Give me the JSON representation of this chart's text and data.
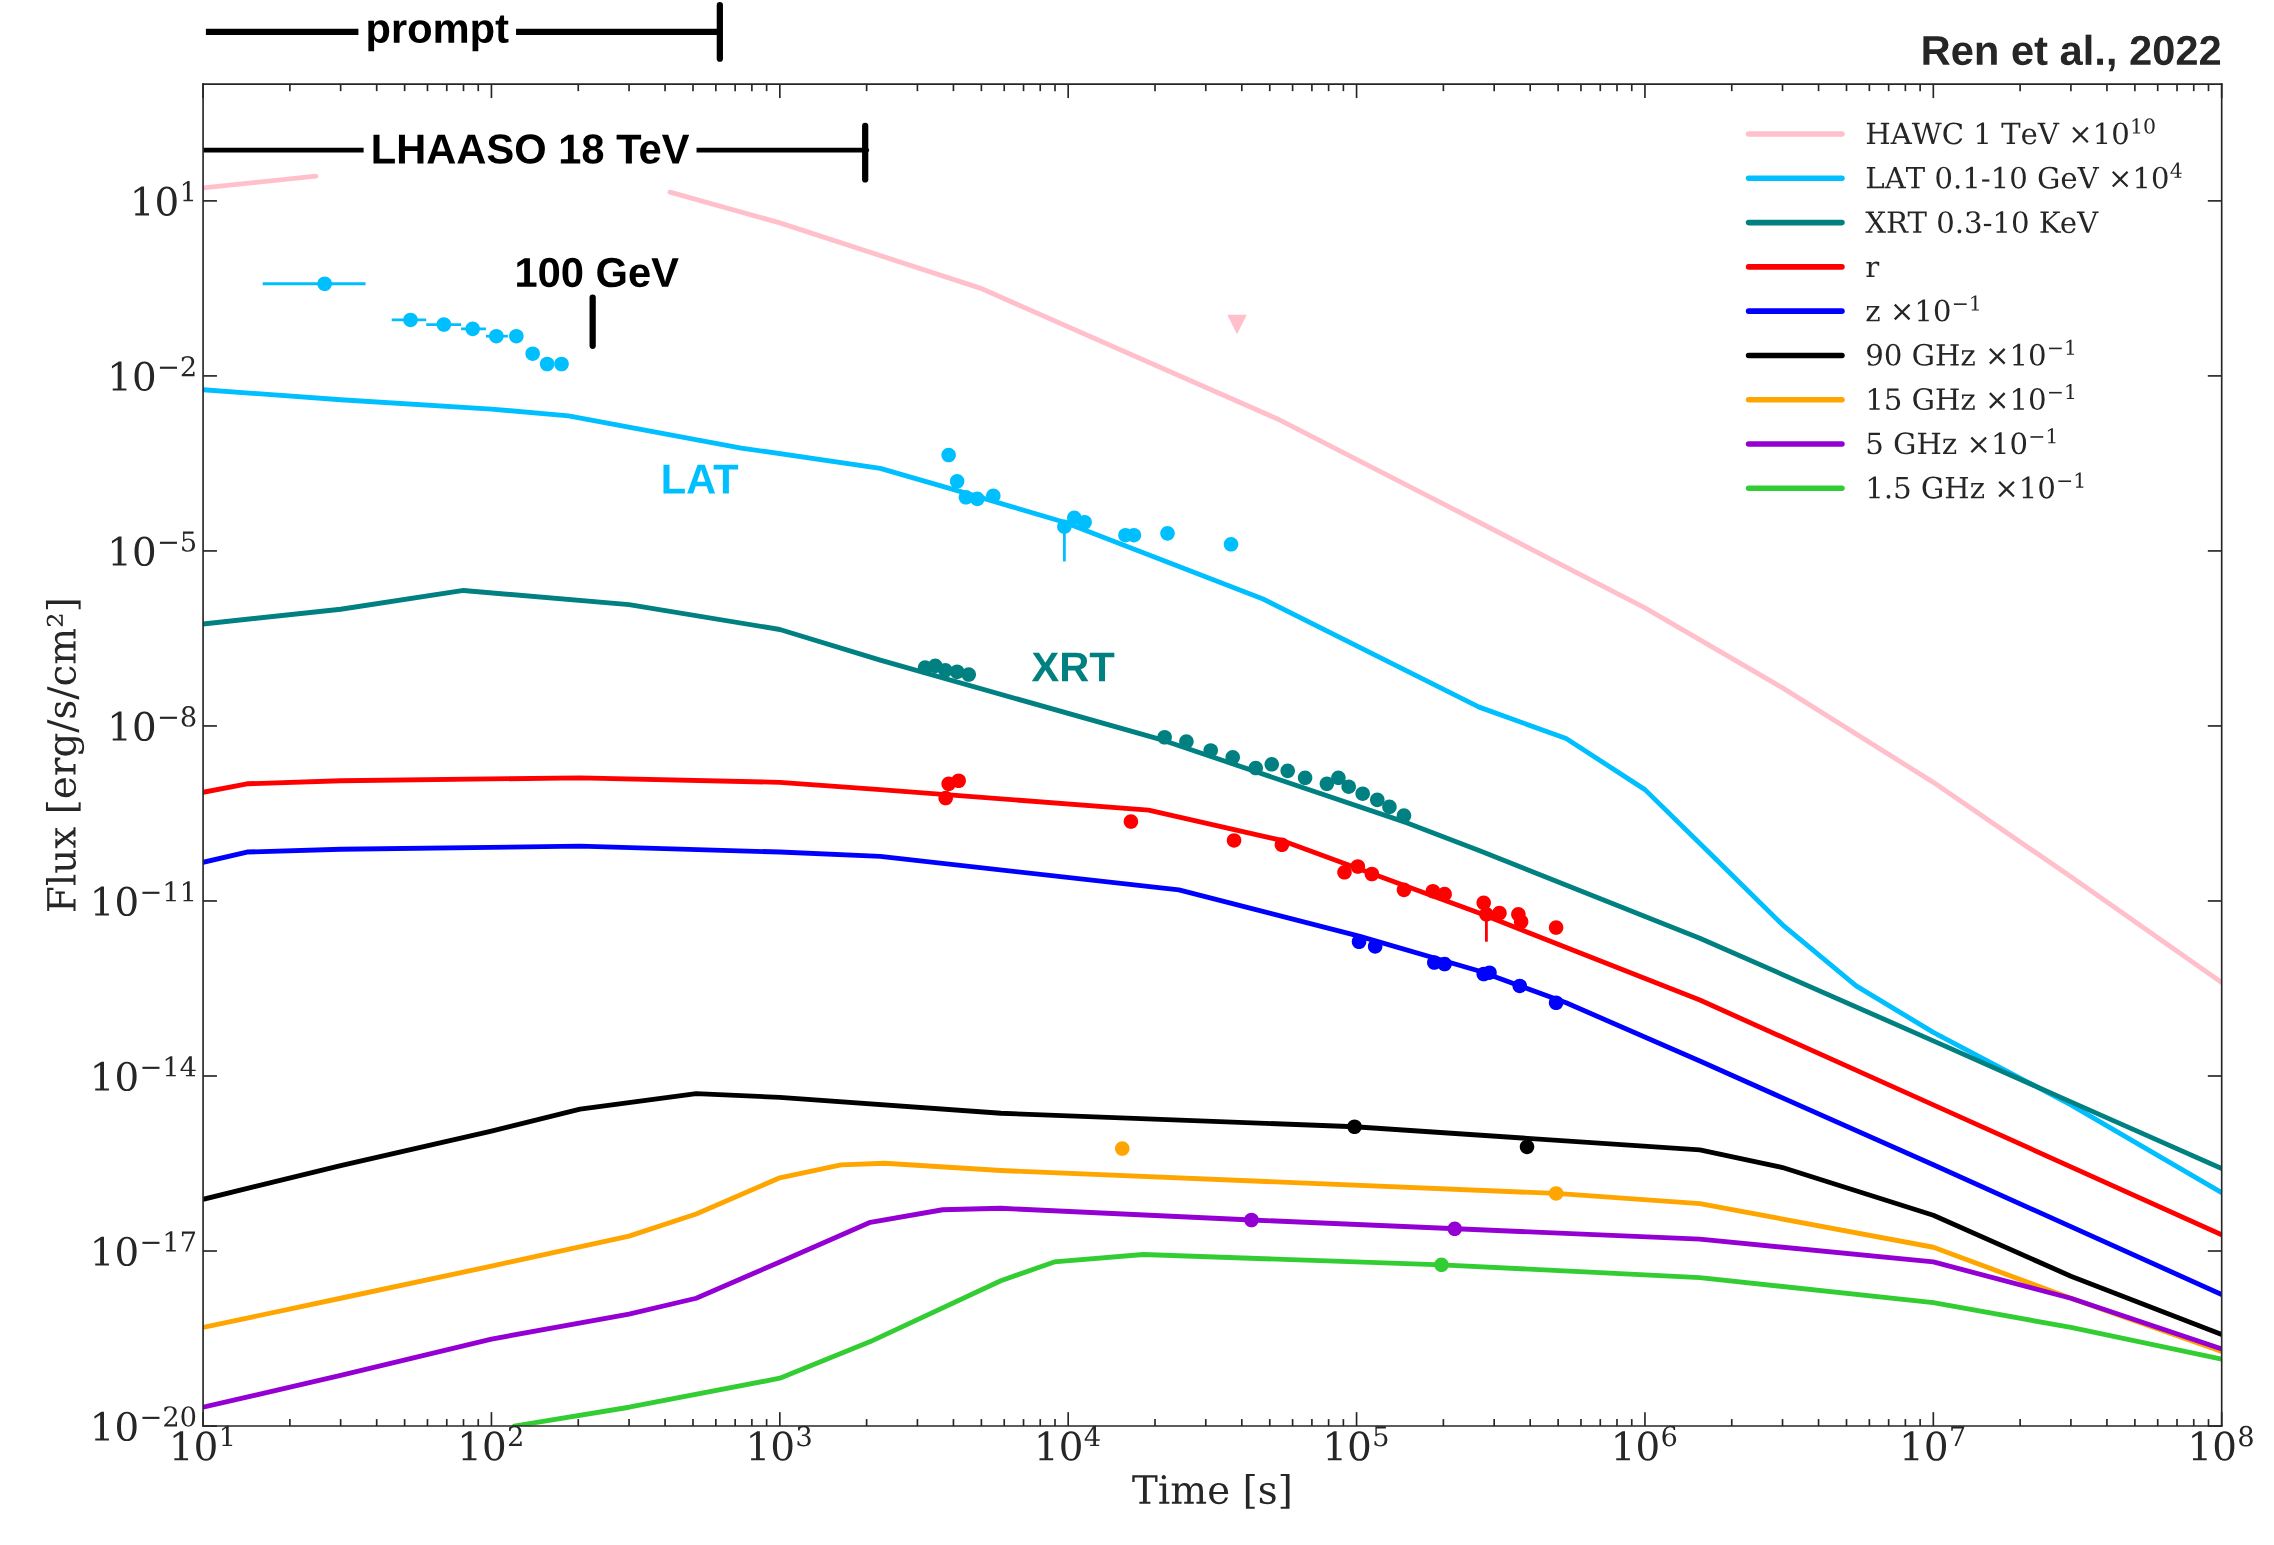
{
  "chart_data": {
    "type": "line",
    "xlabel": "Time [s]",
    "ylabel": "Flux [erg/s/cm²]",
    "log": "xy",
    "grid": false,
    "legend": "top right",
    "xlim": [
      10,
      100000000
    ],
    "ylim": [
      1e-20,
      1000
    ],
    "xticks": [
      {
        "value": 10,
        "label": "10$^{1}$"
      },
      {
        "value": 100,
        "label": "10$^{2}$"
      },
      {
        "value": 1000,
        "label": "10$^{3}$"
      },
      {
        "value": 10000,
        "label": "10$^{4}$"
      },
      {
        "value": 100000,
        "label": "10$^{5}$"
      },
      {
        "value": 1000000,
        "label": "10$^{6}$"
      },
      {
        "value": 10000000,
        "label": "10$^{7}$"
      },
      {
        "value": 100000000,
        "label": "10$^{8}$"
      }
    ],
    "yticks": [
      {
        "value": 1e-20,
        "label": "10$^{−20}$"
      },
      {
        "value": 1e-17,
        "label": "10$^{−17}$"
      },
      {
        "value": 1e-14,
        "label": "10$^{−14}$"
      },
      {
        "value": 1e-11,
        "label": "10$^{−11}$"
      },
      {
        "value": 1e-08,
        "label": "10$^{−8}$"
      },
      {
        "value": 1e-05,
        "label": "10$^{−5}$"
      },
      {
        "value": 0.01,
        "label": "10$^{−2}$"
      },
      {
        "value": 10,
        "label": "10$^{1}$"
      }
    ],
    "series": [
      {
        "name": "HAWC 1 TeV ×10$^{10}$",
        "color": "#ffc0cb",
        "x": [
          10,
          24.6,
          100,
          416,
          1000,
          4950,
          53200,
          266000,
          1000000,
          3000000,
          10000000,
          30000000,
          100000000
        ],
        "values": [
          16.7,
          26.5,
          null,
          14.1,
          4.2,
          0.32,
          0.00183,
          3.1e-05,
          1.06e-06,
          4.5e-08,
          1.08e-09,
          2.6e-11,
          4e-13
        ]
      },
      {
        "name": "LAT 0.1-10 GeV ×10$^{4}$",
        "color": "#00bfff",
        "x": [
          10,
          30,
          100,
          185,
          735,
          2230,
          4070,
          9700,
          47400,
          266000,
          533000,
          1000000,
          1700000,
          3000000,
          5400000,
          10000000,
          30000000,
          100000000
        ],
        "values": [
          0.0058,
          0.0039,
          0.0027,
          0.00206,
          0.00058,
          0.00026,
          0.00011,
          3.1e-05,
          1.5e-06,
          2.1e-08,
          6.1e-09,
          8.1e-10,
          6.2e-11,
          3.9e-12,
          3.5e-13,
          5.6e-14,
          3.2e-15,
          1e-16
        ]
      },
      {
        "name": "XRT 0.3-10 KeV",
        "color": "#008080",
        "x": [
          10,
          30,
          80,
          300,
          1000,
          2230,
          21300,
          149000,
          266000,
          1550000,
          10000000,
          30000000,
          100000000
        ],
        "values": [
          5.6e-07,
          1e-06,
          2.1e-06,
          1.2e-06,
          4.5e-07,
          1.34e-07,
          5.7e-09,
          2.2e-10,
          7.3e-11,
          2.3e-12,
          4e-14,
          3.6e-15,
          2.6e-16
        ]
      },
      {
        "name": "r",
        "color": "#ff0000",
        "x": [
          10,
          14.2,
          30,
          203,
          1000,
          2230,
          19000,
          55100,
          266000,
          1550000,
          10000000,
          100000000
        ],
        "values": [
          7.3e-10,
          1.02e-09,
          1.15e-09,
          1.29e-09,
          1.08e-09,
          8.1e-10,
          3.6e-10,
          1.09e-10,
          6.2e-12,
          2e-13,
          3.2e-15,
          1.9e-17
        ]
      },
      {
        "name": "z ×10$^{−1}$",
        "color": "#0000ff",
        "x": [
          10,
          14.2,
          30,
          203,
          1000,
          2230,
          24200,
          102000,
          266000,
          533000,
          1550000,
          10000000,
          100000000
        ],
        "values": [
          4.6e-11,
          6.9e-11,
          7.7e-11,
          8.7e-11,
          6.9e-11,
          5.8e-11,
          1.55e-11,
          2.5e-12,
          6.3e-13,
          1.8e-13,
          1.8e-14,
          3e-16,
          1.8e-18
        ]
      },
      {
        "name": "90 GHz ×10$^{−1}$",
        "color": "#000000",
        "x": [
          10,
          30,
          100,
          203,
          513,
          1000,
          5840,
          98400,
          1550000,
          3000000,
          10000000,
          30000000,
          100000000
        ],
        "values": [
          7.7e-17,
          2.9e-16,
          1.14e-15,
          2.7e-15,
          5e-15,
          4.3e-15,
          2.3e-15,
          1.35e-15,
          5.4e-16,
          2.7e-16,
          4.1e-17,
          3.7e-18,
          3.7e-19
        ]
      },
      {
        "name": "15 GHz ×10$^{−1}$",
        "color": "#ffa500",
        "x": [
          10,
          30,
          100,
          300,
          513,
          1000,
          1630,
          2310,
          5840,
          492000,
          1550000,
          10000000,
          30000000,
          100000000
        ],
        "values": [
          4.9e-19,
          1.55e-18,
          5.5e-18,
          1.8e-17,
          4.3e-17,
          1.8e-16,
          3e-16,
          3.2e-16,
          2.4e-16,
          9.7e-17,
          6.5e-17,
          1.16e-17,
          1.55e-18,
          1.9e-19
        ]
      },
      {
        "name": "5 GHz ×10$^{−1}$",
        "color": "#9400d3",
        "x": [
          10,
          30,
          100,
          300,
          513,
          1000,
          2060,
          3670,
          5840,
          43200,
          1550000,
          10000000,
          30000000,
          100000000
        ],
        "values": [
          2.1e-20,
          7.4e-20,
          3.1e-19,
          8.3e-19,
          1.55e-18,
          6.5e-18,
          3.1e-17,
          5.1e-17,
          5.4e-17,
          3.4e-17,
          1.6e-17,
          6.5e-18,
          1.55e-18,
          2.1e-19
        ]
      },
      {
        "name": "1.5 GHz ×10$^{−1}$",
        "color": "#32cd32",
        "x": [
          120,
          300,
          1000,
          2060,
          5840,
          8950,
          18200,
          197000,
          1550000,
          10000000,
          30000000,
          100000000
        ],
        "values": [
          1e-20,
          2.1e-20,
          6.6e-20,
          2.8e-19,
          3.1e-18,
          6.5e-18,
          8.7e-18,
          5.8e-18,
          3.5e-18,
          1.3e-18,
          4.9e-19,
          1.4e-19
        ]
      },
      {
        "type": "scatter",
        "color": "#00bfff",
        "marker": "circle",
        "x": [
          26.4,
          52.4,
          68.4,
          86.1,
          104,
          122,
          139,
          156,
          175,
          3850,
          4120,
          4420,
          4840,
          5500,
          9700,
          10500,
          11400,
          15800,
          16900,
          22100,
          36700
        ],
        "values": [
          0.38,
          0.091,
          0.076,
          0.064,
          0.048,
          0.048,
          0.024,
          0.016,
          0.016,
          0.00044,
          0.000156,
          8.3e-05,
          7.8e-05,
          8.8e-05,
          2.6e-05,
          3.7e-05,
          3.1e-05,
          1.86e-05,
          1.86e-05,
          2e-05,
          1.3e-05
        ],
        "xerrors": [
          [
            16.1,
            36.6
          ],
          [
            45.1,
            59.4
          ],
          [
            59.4,
            78.5
          ],
          [
            78.5,
            95.7
          ],
          [
            95.7,
            114
          ],
          null,
          null,
          null,
          null,
          null,
          null,
          null,
          null,
          null,
          null,
          null,
          null,
          null,
          null,
          null,
          null
        ],
        "errors": [
          null,
          null,
          null,
          null,
          null,
          null,
          null,
          null,
          null,
          null,
          null,
          null,
          null,
          null,
          [
            6.6e-06,
            3.1e-05
          ],
          null,
          null,
          null,
          null,
          null,
          null
        ]
      },
      {
        "type": "scatter",
        "color": "#008080",
        "marker": "circle",
        "x": [
          3190,
          3460,
          3750,
          4120,
          4520,
          21600,
          25700,
          31200,
          37200,
          44700,
          50800,
          57700,
          66300,
          78900,
          86500,
          93900,
          105000,
          118000,
          130000,
          146000
        ],
        "values": [
          1e-07,
          1.07e-07,
          9e-08,
          8.5e-08,
          7.6e-08,
          6.4e-09,
          5.4e-09,
          3.8e-09,
          2.9e-09,
          1.9e-09,
          2.2e-09,
          1.7e-09,
          1.29e-09,
          1.02e-09,
          1.29e-09,
          9.1e-10,
          6.9e-10,
          5.4e-10,
          4.1e-10,
          2.9e-10
        ]
      },
      {
        "type": "scatter",
        "color": "#ff0000",
        "marker": "circle",
        "x": [
          3760,
          3850,
          4170,
          16500,
          37600,
          55100,
          90800,
          101000,
          113000,
          146000,
          184000,
          202000,
          276000,
          282000,
          313000,
          364000,
          372000,
          492000
        ],
        "values": [
          5.8e-10,
          1.02e-09,
          1.15e-09,
          2.3e-10,
          1.09e-10,
          9.2e-11,
          3.1e-11,
          3.9e-11,
          2.9e-11,
          1.55e-11,
          1.47e-11,
          1.31e-11,
          9.3e-12,
          5.9e-12,
          6.2e-12,
          5.9e-12,
          4.4e-12,
          3.5e-12
        ],
        "errors": [
          null,
          null,
          null,
          null,
          null,
          null,
          null,
          null,
          null,
          null,
          null,
          null,
          null,
          [
            2e-12,
            5.9e-12
          ],
          null,
          null,
          null,
          null
        ]
      },
      {
        "type": "scatter",
        "color": "#0000ff",
        "marker": "circle",
        "x": [
          102000,
          116000,
          186000,
          202000,
          276000,
          289000,
          368000,
          492000
        ],
        "values": [
          2e-12,
          1.66e-12,
          8.8e-13,
          8.3e-13,
          5.6e-13,
          5.9e-13,
          3.5e-13,
          1.8e-13
        ]
      },
      {
        "type": "scatter",
        "color": "#000000",
        "marker": "circle",
        "x": [
          98400,
          390000
        ],
        "values": [
          1.35e-15,
          6.1e-16
        ]
      },
      {
        "type": "scatter",
        "color": "#ffa500",
        "marker": "circle",
        "x": [
          15400,
          492000
        ],
        "values": [
          5.7e-16,
          9.7e-17
        ]
      },
      {
        "type": "scatter",
        "color": "#9400d3",
        "marker": "circle",
        "x": [
          43200,
          219000
        ],
        "values": [
          3.4e-17,
          2.4e-17
        ]
      },
      {
        "type": "scatter",
        "color": "#32cd32",
        "marker": "circle",
        "x": [
          197000
        ],
        "values": [
          5.8e-18
        ]
      },
      {
        "type": "scatter",
        "color": "#ffc0cb",
        "marker": "triangle",
        "x": [
          38500
        ],
        "values": [
          0.076
        ]
      },
      {
        "color": "#000000",
        "x": [
          10,
          2000
        ],
        "values": [
          74,
          74
        ]
      }
    ],
    "annotations": [
      "Ren et al., 2022",
      "prompt",
      "LHAASO 18 TeV",
      "100 GeV",
      "LAT",
      "XRT"
    ]
  }
}
